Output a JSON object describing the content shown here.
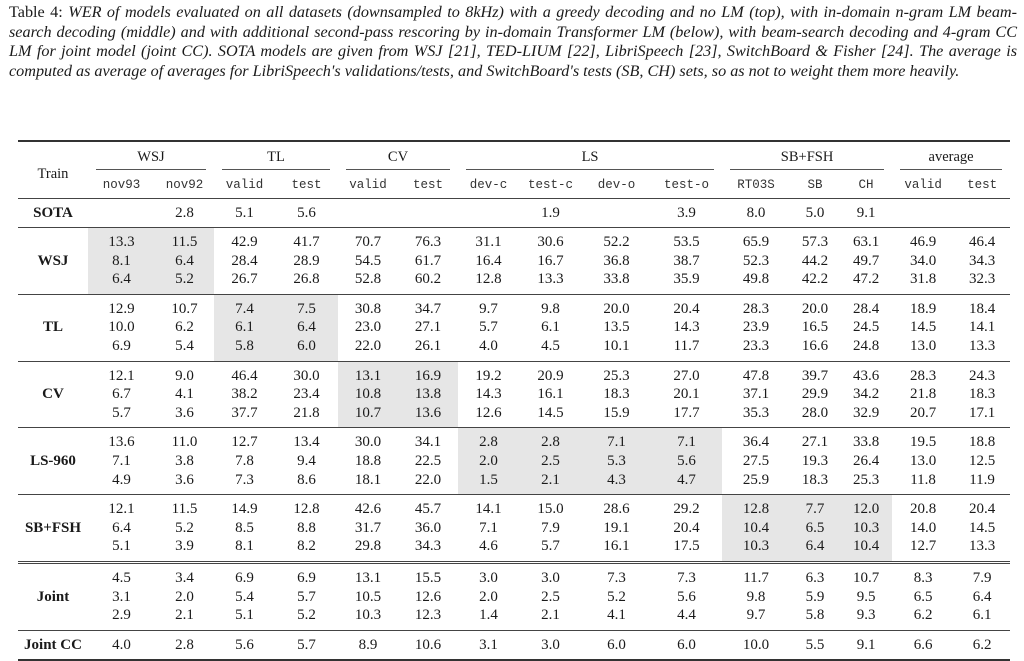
{
  "caption": {
    "label": "Table 4:",
    "text": "WER of models evaluated on all datasets (downsampled to 8kHz) with a greedy decoding and no LM (top), with in-domain n-gram LM beam-search decoding (middle) and with additional second-pass rescoring by in-domain Transformer LM (below), with beam-search decoding and 4-gram CC LM for joint model (joint CC). SOTA models are given from WSJ [21], TED-LIUM [22], LibriSpeech [23], SwitchBoard & Fisher [24]. The average is computed as average of averages for LibriSpeech's validations/tests, and SwitchBoard's tests (SB, CH) sets, so as not to weight them more heavily."
  },
  "header": {
    "train": "Train",
    "groups": [
      {
        "label": "WSJ",
        "span": 2
      },
      {
        "label": "TL",
        "span": 2
      },
      {
        "label": "CV",
        "span": 2
      },
      {
        "label": "LS",
        "span": 4
      },
      {
        "label": "SB+FSH",
        "span": 3
      },
      {
        "label": "average",
        "span": 2
      }
    ],
    "columns": [
      "nov93",
      "nov92",
      "valid",
      "test",
      "valid",
      "test",
      "dev-c",
      "test-c",
      "dev-o",
      "test-o",
      "RT03S",
      "SB",
      "CH",
      "valid",
      "test"
    ]
  },
  "sota": {
    "label": "SOTA",
    "values": [
      "",
      "2.8",
      "5.1",
      "5.6",
      "",
      "",
      "",
      "1.9",
      "",
      "3.9",
      "8.0",
      "5.0",
      "9.1",
      "",
      ""
    ]
  },
  "blocks": [
    {
      "train": "WSJ",
      "shaded": [
        0,
        1
      ],
      "double": false,
      "rows": [
        [
          "13.3",
          "11.5",
          "42.9",
          "41.7",
          "70.7",
          "76.3",
          "31.1",
          "30.6",
          "52.2",
          "53.5",
          "65.9",
          "57.3",
          "63.1",
          "46.9",
          "46.4"
        ],
        [
          "8.1",
          "6.4",
          "28.4",
          "28.9",
          "54.5",
          "61.7",
          "16.4",
          "16.7",
          "36.8",
          "38.7",
          "52.3",
          "44.2",
          "49.7",
          "34.0",
          "34.3"
        ],
        [
          "6.4",
          "5.2",
          "26.7",
          "26.8",
          "52.8",
          "60.2",
          "12.8",
          "13.3",
          "33.8",
          "35.9",
          "49.8",
          "42.2",
          "47.2",
          "31.8",
          "32.3"
        ]
      ]
    },
    {
      "train": "TL",
      "shaded": [
        2,
        3
      ],
      "double": false,
      "rows": [
        [
          "12.9",
          "10.7",
          "7.4",
          "7.5",
          "30.8",
          "34.7",
          "9.7",
          "9.8",
          "20.0",
          "20.4",
          "28.3",
          "20.0",
          "28.4",
          "18.9",
          "18.4"
        ],
        [
          "10.0",
          "6.2",
          "6.1",
          "6.4",
          "23.0",
          "27.1",
          "5.7",
          "6.1",
          "13.5",
          "14.3",
          "23.9",
          "16.5",
          "24.5",
          "14.5",
          "14.1"
        ],
        [
          "6.9",
          "5.4",
          "5.8",
          "6.0",
          "22.0",
          "26.1",
          "4.0",
          "4.5",
          "10.1",
          "11.7",
          "23.3",
          "16.6",
          "24.8",
          "13.0",
          "13.3"
        ]
      ]
    },
    {
      "train": "CV",
      "shaded": [
        4,
        5
      ],
      "double": false,
      "rows": [
        [
          "12.1",
          "9.0",
          "46.4",
          "30.0",
          "13.1",
          "16.9",
          "19.2",
          "20.9",
          "25.3",
          "27.0",
          "47.8",
          "39.7",
          "43.6",
          "28.3",
          "24.3"
        ],
        [
          "6.7",
          "4.1",
          "38.2",
          "23.4",
          "10.8",
          "13.8",
          "14.3",
          "16.1",
          "18.3",
          "20.1",
          "37.1",
          "29.9",
          "34.2",
          "21.8",
          "18.3"
        ],
        [
          "5.7",
          "3.6",
          "37.7",
          "21.8",
          "10.7",
          "13.6",
          "12.6",
          "14.5",
          "15.9",
          "17.7",
          "35.3",
          "28.0",
          "32.9",
          "20.7",
          "17.1"
        ]
      ]
    },
    {
      "train": "LS-960",
      "shaded": [
        6,
        7,
        8,
        9
      ],
      "double": false,
      "rows": [
        [
          "13.6",
          "11.0",
          "12.7",
          "13.4",
          "30.0",
          "34.1",
          "2.8",
          "2.8",
          "7.1",
          "7.1",
          "36.4",
          "27.1",
          "33.8",
          "19.5",
          "18.8"
        ],
        [
          "7.1",
          "3.8",
          "7.8",
          "9.4",
          "18.8",
          "22.5",
          "2.0",
          "2.5",
          "5.3",
          "5.6",
          "27.5",
          "19.3",
          "26.4",
          "13.0",
          "12.5"
        ],
        [
          "4.9",
          "3.6",
          "7.3",
          "8.6",
          "18.1",
          "22.0",
          "1.5",
          "2.1",
          "4.3",
          "4.7",
          "25.9",
          "18.3",
          "25.3",
          "11.8",
          "11.9"
        ]
      ]
    },
    {
      "train": "SB+FSH",
      "shaded": [
        10,
        11,
        12
      ],
      "double": false,
      "rows": [
        [
          "12.1",
          "11.5",
          "14.9",
          "12.8",
          "42.6",
          "45.7",
          "14.1",
          "15.0",
          "28.6",
          "29.2",
          "12.8",
          "7.7",
          "12.0",
          "20.8",
          "20.4"
        ],
        [
          "6.4",
          "5.2",
          "8.5",
          "8.8",
          "31.7",
          "36.0",
          "7.1",
          "7.9",
          "19.1",
          "20.4",
          "10.4",
          "6.5",
          "10.3",
          "14.0",
          "14.5"
        ],
        [
          "5.1",
          "3.9",
          "8.1",
          "8.2",
          "29.8",
          "34.3",
          "4.6",
          "5.7",
          "16.1",
          "17.5",
          "10.3",
          "6.4",
          "10.4",
          "12.7",
          "13.3"
        ]
      ]
    },
    {
      "train": "Joint",
      "shaded": [],
      "double": true,
      "rows": [
        [
          "4.5",
          "3.4",
          "6.9",
          "6.9",
          "13.1",
          "15.5",
          "3.0",
          "3.0",
          "7.3",
          "7.3",
          "11.7",
          "6.3",
          "10.7",
          "8.3",
          "7.9"
        ],
        [
          "3.1",
          "2.0",
          "5.4",
          "5.7",
          "10.5",
          "12.6",
          "2.0",
          "2.5",
          "5.2",
          "5.6",
          "9.8",
          "5.9",
          "9.5",
          "6.5",
          "6.4"
        ],
        [
          "2.9",
          "2.1",
          "5.1",
          "5.2",
          "10.3",
          "12.3",
          "1.4",
          "2.1",
          "4.1",
          "4.4",
          "9.7",
          "5.8",
          "9.3",
          "6.2",
          "6.1"
        ]
      ]
    },
    {
      "train": "Joint CC",
      "shaded": [],
      "double": false,
      "rows": [
        [
          "4.0",
          "2.8",
          "5.6",
          "5.7",
          "8.9",
          "10.6",
          "3.1",
          "3.0",
          "6.0",
          "6.0",
          "10.0",
          "5.5",
          "9.1",
          "6.6",
          "6.2"
        ]
      ]
    }
  ]
}
